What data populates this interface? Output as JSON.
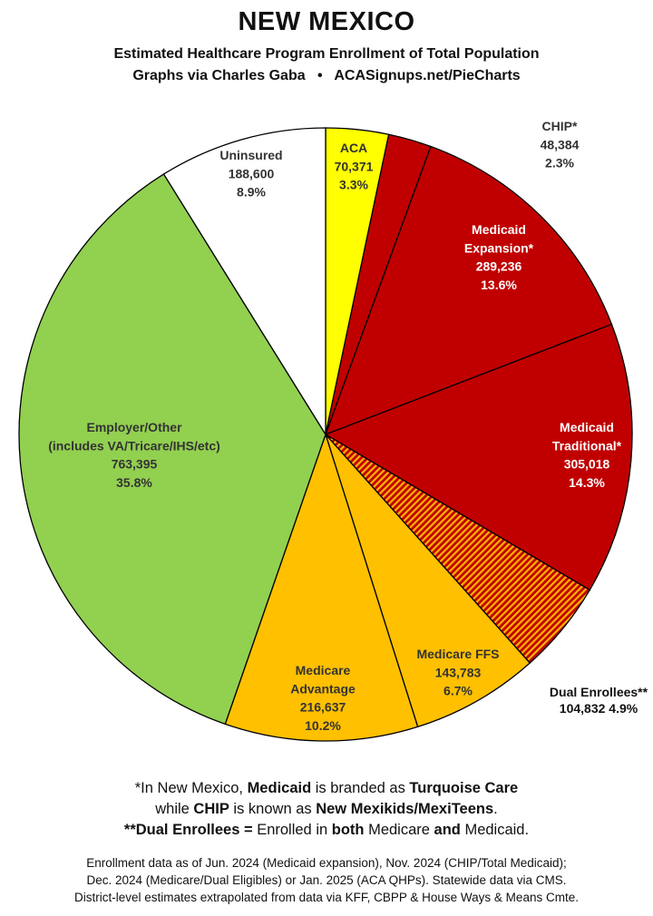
{
  "header": {
    "title": "NEW MEXICO",
    "subtitle": "Estimated Healthcare Program Enrollment of Total Population",
    "credit_left": "Graphs via Charles Gaba",
    "credit_sep": "•",
    "credit_right": "ACASignups.net/PieCharts"
  },
  "chart_data": {
    "type": "pie",
    "title": "NEW MEXICO",
    "start_angle_deg": 0,
    "direction": "clockwise",
    "slices": [
      {
        "name": "ACA",
        "value": 70371,
        "value_label": "70,371",
        "percent": "3.3%",
        "color": "#ffff00",
        "lines": [
          "ACA"
        ],
        "label_color": "#333333"
      },
      {
        "name": "CHIP*",
        "value": 48384,
        "value_label": "48,384",
        "percent": "2.3%",
        "color": "#c00000",
        "lines": [
          "CHIP*"
        ],
        "label_color": "#333333"
      },
      {
        "name": "Medicaid Expansion*",
        "value": 289236,
        "value_label": "289,236",
        "percent": "13.6%",
        "color": "#c00000",
        "lines": [
          "Medicaid",
          "Expansion*"
        ],
        "label_color": "#ffffff"
      },
      {
        "name": "Medicaid Traditional*",
        "value": 305018,
        "value_label": "305,018",
        "percent": "14.3%",
        "color": "#c00000",
        "lines": [
          "Medicaid",
          "Traditional*"
        ],
        "label_color": "#ffffff"
      },
      {
        "name": "Dual Enrollees**",
        "value": 104832,
        "value_label": "104,832",
        "percent": "4.9%",
        "color": "#c00000",
        "hatch_color": "#ffb300",
        "lines": [
          "Dual Enrollees**"
        ],
        "label_color": "#111111"
      },
      {
        "name": "Medicare FFS",
        "value": 143783,
        "value_label": "143,783",
        "percent": "6.7%",
        "color": "#ffc000",
        "lines": [
          "Medicare FFS"
        ],
        "label_color": "#333333"
      },
      {
        "name": "Medicare Advantage",
        "value": 216637,
        "value_label": "216,637",
        "percent": "10.2%",
        "color": "#ffc000",
        "lines": [
          "Medicare",
          "Advantage"
        ],
        "label_color": "#333333"
      },
      {
        "name": "Employer/Other (includes VA/Tricare/IHS/etc)",
        "value": 763395,
        "value_label": "763,395",
        "percent": "35.8%",
        "color": "#92d050",
        "lines": [
          "Employer/Other",
          "(includes VA/Tricare/IHS/etc)"
        ],
        "label_color": "#333333"
      },
      {
        "name": "Uninsured",
        "value": 188600,
        "value_label": "188,600",
        "percent": "8.9%",
        "color": "#ffffff",
        "lines": [
          "Uninsured"
        ],
        "label_color": "#333333"
      }
    ]
  },
  "notes": {
    "line1_prefix": "*In New Mexico, ",
    "line1_bold1": "Medicaid",
    "line1_mid": " is branded as ",
    "line1_bold2": "Turquoise Care",
    "line2_prefix": "while ",
    "line2_bold1": "CHIP",
    "line2_mid": " is known as ",
    "line2_bold2": "New Mexikids/MexiTeens",
    "line2_suffix": ".",
    "line3_bold1": "**Dual Enrollees =",
    "line3_mid1": " Enrolled in ",
    "line3_bold2": "both",
    "line3_mid2": " Medicare ",
    "line3_bold3": "and",
    "line3_suffix": " Medicaid."
  },
  "source": {
    "line1": "Enrollment data as of Jun. 2024 (Medicaid expansion), Nov. 2024 (CHIP/Total Medicaid);",
    "line2": "Dec. 2024 (Medicare/Dual Eligibles) or Jan. 2025 (ACA QHPs). Statewide data via CMS.",
    "line3": "District-level estimates extrapolated from data via KFF, CBPP & House Ways & Means Cmte."
  }
}
